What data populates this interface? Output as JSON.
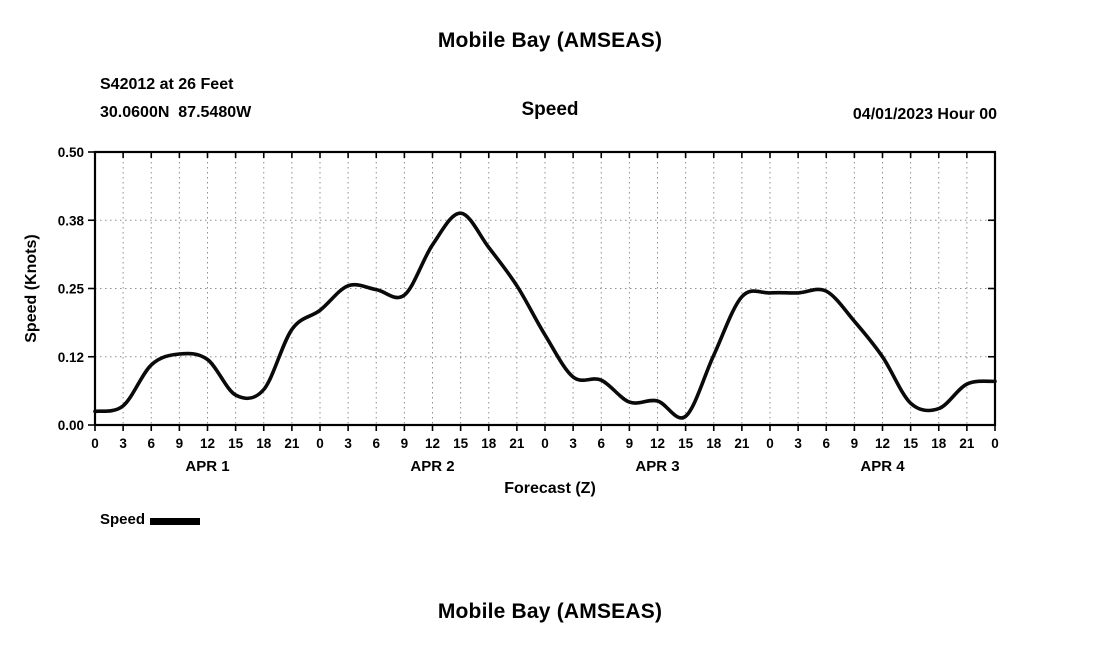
{
  "footer": {
    "next_title": "Mobile Bay (AMSEAS)"
  },
  "chart_data": {
    "type": "line",
    "title": "Mobile Bay (AMSEAS)",
    "subtitle": "Speed",
    "station": "S42012 at 26 Feet",
    "location": "30.0600N  87.5480W",
    "run_label": "04/01/2023 Hour 00",
    "xlabel": "Forecast (Z)",
    "ylabel": "Speed (Knots)",
    "ylim": [
      0.0,
      0.5
    ],
    "ytick_values": [
      0.0,
      0.125,
      0.25,
      0.375,
      0.5
    ],
    "ytick_labels": [
      "0.00",
      "0.12",
      "0.25",
      "0.38",
      "0.50"
    ],
    "x_range_hours": [
      0,
      96
    ],
    "xtick_interval_hours": 3,
    "xtick_labels": [
      "0",
      "3",
      "6",
      "9",
      "12",
      "15",
      "18",
      "21",
      "0",
      "3",
      "6",
      "9",
      "12",
      "15",
      "18",
      "21",
      "0",
      "3",
      "6",
      "9",
      "12",
      "15",
      "18",
      "21",
      "0",
      "3",
      "6",
      "9",
      "12",
      "15",
      "18",
      "21",
      "0"
    ],
    "day_labels": [
      "APR 1",
      "APR 2",
      "APR 3",
      "APR 4"
    ],
    "grid": "dotted",
    "legend_position": "bottom-left",
    "legend": [
      {
        "label": "Speed",
        "color": "#000000"
      }
    ],
    "series": [
      {
        "name": "Speed",
        "x_hours": [
          0,
          3,
          6,
          9,
          12,
          15,
          18,
          21,
          24,
          27,
          30,
          33,
          36,
          39,
          42,
          45,
          48,
          51,
          54,
          57,
          60,
          63,
          66,
          69,
          72,
          75,
          78,
          81,
          84,
          87,
          90,
          93,
          96
        ],
        "values": [
          0.025,
          0.035,
          0.11,
          0.13,
          0.12,
          0.055,
          0.065,
          0.175,
          0.21,
          0.255,
          0.248,
          0.238,
          0.33,
          0.388,
          0.325,
          0.255,
          0.165,
          0.088,
          0.082,
          0.042,
          0.044,
          0.016,
          0.128,
          0.235,
          0.242,
          0.242,
          0.245,
          0.19,
          0.125,
          0.04,
          0.03,
          0.075,
          0.08
        ]
      }
    ]
  }
}
